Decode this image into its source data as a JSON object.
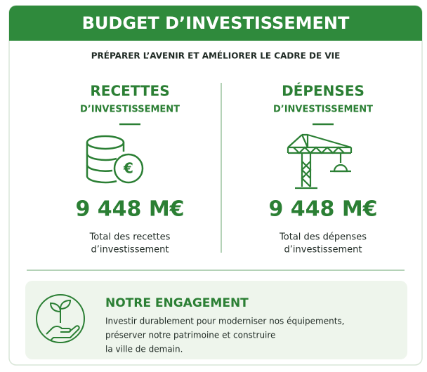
{
  "header": {
    "title": "BUDGET D’INVESTISSEMENT",
    "subtitle": "PRÉPARER L’AVENIR ET AMÉLIORER LE CADRE DE VIE"
  },
  "columns": [
    {
      "title": "RECETTES",
      "subtitle": "D’INVESTISSEMENT",
      "amount": "9 448 M€",
      "caption": [
        "Total des recettes",
        "d’investissement"
      ]
    },
    {
      "title": "DÉPENSES",
      "subtitle": "D’INVESTISSEMENT",
      "amount": "9 448 M€",
      "caption": [
        "Total des dépenses",
        "d’investissement"
      ]
    }
  ],
  "engagement": {
    "title": "NOTRE ENGAGEMENT",
    "lines": [
      "Investir durablement pour moderniser nos équipements,",
      "préserver notre patrimoine et construire",
      "la ville de demain."
    ]
  }
}
